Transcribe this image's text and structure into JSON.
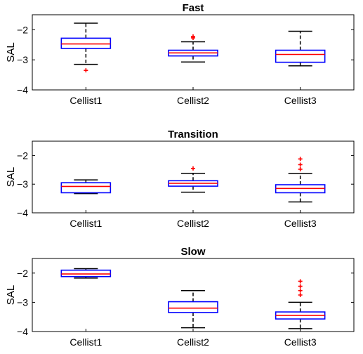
{
  "colors": {
    "box": "#0000ff",
    "median": "#ff0000",
    "outlier": "#ff0000",
    "whisker": "#000000"
  },
  "chart_data": [
    {
      "type": "boxplot",
      "title": "Fast",
      "ylabel": "SAL",
      "ylim": [
        -4,
        -1.5
      ],
      "yticks": [
        -4,
        -3,
        -2
      ],
      "categories": [
        "Cellist1",
        "Cellist2",
        "Cellist3"
      ],
      "boxes": [
        {
          "q1": -2.62,
          "median": -2.47,
          "q3": -2.28,
          "whisker_low": -3.15,
          "whisker_high": -1.78,
          "outliers": [
            -3.35
          ]
        },
        {
          "q1": -2.87,
          "median": -2.77,
          "q3": -2.68,
          "whisker_low": -3.07,
          "whisker_high": -2.4,
          "outliers": [
            -2.27,
            -2.22
          ]
        },
        {
          "q1": -3.08,
          "median": -2.82,
          "q3": -2.68,
          "whisker_low": -3.2,
          "whisker_high": -2.05,
          "outliers": []
        }
      ]
    },
    {
      "type": "boxplot",
      "title": "Transition",
      "ylabel": "SAL",
      "ylim": [
        -4,
        -1.5
      ],
      "yticks": [
        -4,
        -3,
        -2
      ],
      "categories": [
        "Cellist1",
        "Cellist2",
        "Cellist3"
      ],
      "boxes": [
        {
          "q1": -3.3,
          "median": -3.08,
          "q3": -2.95,
          "whisker_low": -3.33,
          "whisker_high": -2.85,
          "outliers": []
        },
        {
          "q1": -3.07,
          "median": -2.97,
          "q3": -2.88,
          "whisker_low": -3.28,
          "whisker_high": -2.62,
          "outliers": [
            -2.45
          ]
        },
        {
          "q1": -3.3,
          "median": -3.15,
          "q3": -3.02,
          "whisker_low": -3.62,
          "whisker_high": -2.63,
          "outliers": [
            -2.48,
            -2.32,
            -2.12
          ]
        }
      ]
    },
    {
      "type": "boxplot",
      "title": "Slow",
      "ylabel": "SAL",
      "ylim": [
        -4,
        -1.5
      ],
      "yticks": [
        -4,
        -3,
        -2
      ],
      "categories": [
        "Cellist1",
        "Cellist2",
        "Cellist3"
      ],
      "boxes": [
        {
          "q1": -2.12,
          "median": -2.03,
          "q3": -1.9,
          "whisker_low": -2.17,
          "whisker_high": -1.85,
          "outliers": []
        },
        {
          "q1": -3.35,
          "median": -3.2,
          "q3": -2.98,
          "whisker_low": -3.87,
          "whisker_high": -2.6,
          "outliers": []
        },
        {
          "q1": -3.57,
          "median": -3.45,
          "q3": -3.33,
          "whisker_low": -3.9,
          "whisker_high": -3.0,
          "outliers": [
            -2.75,
            -2.6,
            -2.45,
            -2.28
          ]
        }
      ]
    }
  ]
}
